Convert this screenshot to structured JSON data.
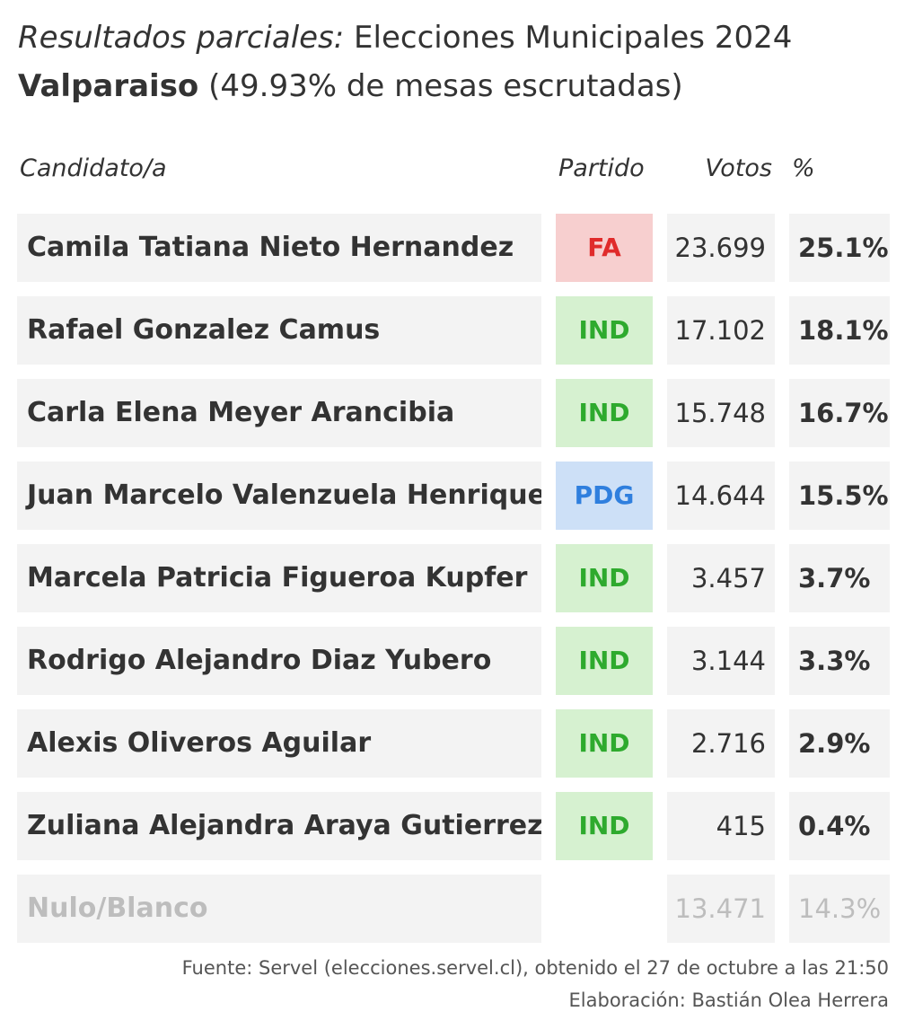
{
  "title": {
    "italic_part": "Resultados parciales:",
    "rest": " Elecciones Municipales 2024"
  },
  "subtitle": {
    "bold_part": "Valparaiso",
    "rest": " (49.93% de mesas escrutadas)"
  },
  "table": {
    "headers": {
      "candidate": "Candidato/a",
      "party": "Partido",
      "votes": "Votos",
      "percent": "%"
    },
    "rows": [
      {
        "candidate": "Camila Tatiana Nieto Hernandez",
        "party": "FA",
        "votes": "23.699",
        "percent": "25.1%"
      },
      {
        "candidate": "Rafael Gonzalez Camus",
        "party": "IND",
        "votes": "17.102",
        "percent": "18.1%"
      },
      {
        "candidate": "Carla Elena Meyer Arancibia",
        "party": "IND",
        "votes": "15.748",
        "percent": "16.7%"
      },
      {
        "candidate": "Juan Marcelo Valenzuela Henriquez",
        "party": "PDG",
        "votes": "14.644",
        "percent": "15.5%"
      },
      {
        "candidate": "Marcela Patricia Figueroa Kupfer",
        "party": "IND",
        "votes": "3.457",
        "percent": "3.7%"
      },
      {
        "candidate": "Rodrigo Alejandro Diaz Yubero",
        "party": "IND",
        "votes": "3.144",
        "percent": "3.3%"
      },
      {
        "candidate": "Alexis Oliveros Aguilar",
        "party": "IND",
        "votes": "2.716",
        "percent": "2.9%"
      },
      {
        "candidate": "Zuliana Alejandra Araya Gutierrez",
        "party": "IND",
        "votes": "415",
        "percent": "0.4%"
      }
    ],
    "null_blank": {
      "label": "Nulo/Blanco",
      "votes": "13.471",
      "percent": "14.3%"
    }
  },
  "party_colors": {
    "FA": {
      "background": "#f7cfcf",
      "text": "#e02b2b"
    },
    "IND": {
      "background": "#d6f1d0",
      "text": "#2eaa2e"
    },
    "PDG": {
      "background": "#cde0f7",
      "text": "#2f7fde"
    }
  },
  "footer": {
    "source": "Fuente: Servel (elecciones.servel.cl), obtenido el 27 de octubre a las 21:50",
    "credit": "Elaboración: Bastián Olea Herrera"
  }
}
